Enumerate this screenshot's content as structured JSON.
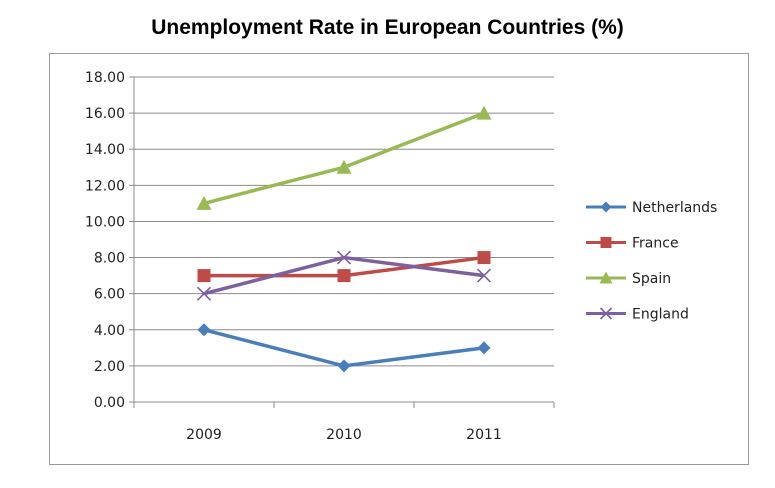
{
  "chart_data": {
    "type": "line",
    "title": "Unemployment Rate in European Countries (%)",
    "xlabel": "",
    "ylabel": "",
    "categories": [
      "2009",
      "2010",
      "2011"
    ],
    "ylim": [
      0,
      18
    ],
    "yticks": [
      "0.00",
      "2.00",
      "4.00",
      "6.00",
      "8.00",
      "10.00",
      "12.00",
      "14.00",
      "16.00",
      "18.00"
    ],
    "grid": true,
    "legend_position": "right",
    "series": [
      {
        "name": "Netherlands",
        "values": [
          4,
          2,
          3
        ],
        "color": "#4a7ebb",
        "marker": "diamond"
      },
      {
        "name": "France",
        "values": [
          7,
          7,
          8
        ],
        "color": "#be4b48",
        "marker": "square"
      },
      {
        "name": "Spain",
        "values": [
          11,
          13,
          16
        ],
        "color": "#98b954",
        "marker": "triangle"
      },
      {
        "name": "England",
        "values": [
          6,
          8,
          7
        ],
        "color": "#7d60a0",
        "marker": "x"
      }
    ]
  }
}
